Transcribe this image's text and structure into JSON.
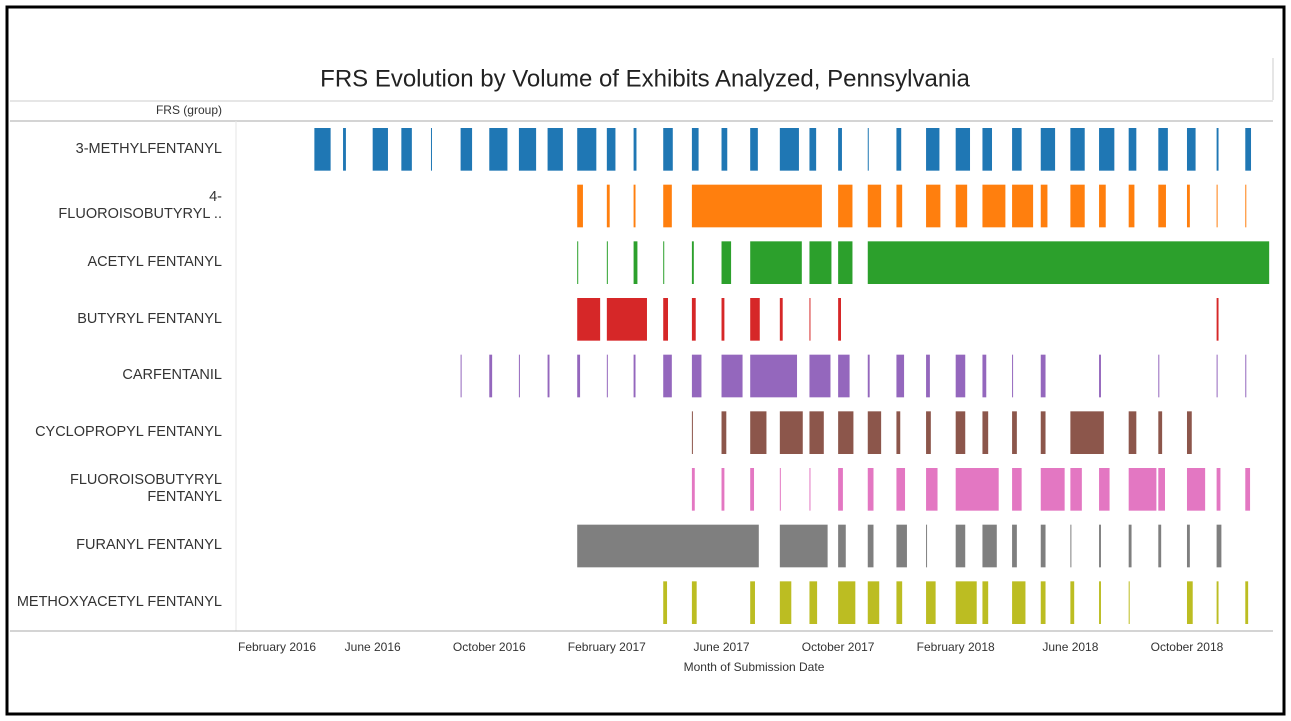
{
  "chart_data": {
    "type": "gantt",
    "title": "FRS Evolution by Volume of Exhibits Analyzed, Pennsylvania",
    "row_header": "FRS (group)",
    "x_label": "Month of Submission Date",
    "xlim": [
      "2016-01-10",
      "2018-12-30"
    ],
    "xticks": [
      {
        "value": "2016-02",
        "label": "February 2016"
      },
      {
        "value": "2016-06",
        "label": "June 2016"
      },
      {
        "value": "2016-10",
        "label": "October 2016"
      },
      {
        "value": "2017-02",
        "label": "February 2017"
      },
      {
        "value": "2017-06",
        "label": "June 2017"
      },
      {
        "value": "2017-10",
        "label": "October 2017"
      },
      {
        "value": "2018-02",
        "label": "February 2018"
      },
      {
        "value": "2018-06",
        "label": "June 2018"
      },
      {
        "value": "2018-10",
        "label": "October 2018"
      }
    ],
    "series": [
      {
        "name": "3-METHYLFENTANYL",
        "color": "#1f77b4",
        "x": [
          "2016-04",
          "2016-05",
          "2016-06",
          "2016-07",
          "2016-08",
          "2016-09",
          "2016-10",
          "2016-11",
          "2016-12",
          "2017-01",
          "2017-02",
          "2017-03",
          "2017-04",
          "2017-05",
          "2017-06",
          "2017-07",
          "2017-08",
          "2017-09",
          "2017-10",
          "2017-11",
          "2017-12",
          "2018-01",
          "2018-02",
          "2018-03",
          "2018-04",
          "2018-05",
          "2018-06",
          "2018-07",
          "2018-08",
          "2018-09",
          "2018-10",
          "2018-11",
          "2018-12"
        ],
        "values": [
          17,
          3,
          16,
          11,
          1,
          12,
          19,
          18,
          16,
          20,
          9,
          3,
          10,
          7,
          6,
          8,
          20,
          7,
          4,
          1,
          5,
          14,
          15,
          10,
          10,
          15,
          15,
          16,
          8,
          10,
          9,
          2,
          6
        ]
      },
      {
        "name": "4-\nFLUOROISOBUTYRYL ..",
        "color": "#ff7f0e",
        "x": [
          "2017-01",
          "2017-02",
          "2017-03",
          "2017-04",
          "2017-05",
          "2017-10",
          "2017-11",
          "2017-12",
          "2018-01",
          "2018-02",
          "2018-03",
          "2018-04",
          "2018-05",
          "2018-06",
          "2018-07",
          "2018-08",
          "2018-09",
          "2018-10",
          "2018-11",
          "2018-12"
        ],
        "values": [
          6,
          3,
          2,
          9,
          136,
          15,
          14,
          6,
          15,
          12,
          24,
          22,
          7,
          15,
          7,
          6,
          8,
          3,
          1,
          1
        ]
      },
      {
        "name": "ACETYL FENTANYL",
        "color": "#2ca02c",
        "x": [
          "2017-01",
          "2017-02",
          "2017-03",
          "2017-04",
          "2017-05",
          "2017-06",
          "2017-07",
          "2017-09",
          "2017-10",
          "2017-11"
        ],
        "values": [
          1,
          1,
          4,
          1,
          2,
          10,
          54,
          23,
          15,
          420
        ]
      },
      {
        "name": "BUTYRYL FENTANYL",
        "color": "#d62728",
        "x": [
          "2017-01",
          "2017-02",
          "2017-04",
          "2017-05",
          "2017-06",
          "2017-07",
          "2017-08",
          "2017-09",
          "2017-10",
          "2018-11"
        ],
        "values": [
          24,
          42,
          5,
          4,
          3,
          10,
          3,
          1,
          3,
          2
        ]
      },
      {
        "name": "CARFENTANIL",
        "color": "#9467bd",
        "x": [
          "2016-09",
          "2016-10",
          "2016-11",
          "2016-12",
          "2017-01",
          "2017-02",
          "2017-03",
          "2017-04",
          "2017-05",
          "2017-06",
          "2017-07",
          "2017-09",
          "2017-10",
          "2017-11",
          "2017-12",
          "2018-01",
          "2018-02",
          "2018-03",
          "2018-04",
          "2018-05",
          "2018-07",
          "2018-09",
          "2018-11",
          "2018-12"
        ],
        "values": [
          1,
          3,
          1,
          2,
          3,
          1,
          2,
          9,
          10,
          22,
          49,
          22,
          12,
          2,
          8,
          4,
          10,
          4,
          1,
          5,
          2,
          1,
          1,
          1
        ]
      },
      {
        "name": "CYCLOPROPYL FENTANYL",
        "color": "#8c564b",
        "x": [
          "2017-05",
          "2017-06",
          "2017-07",
          "2017-08",
          "2017-09",
          "2017-10",
          "2017-11",
          "2017-12",
          "2018-01",
          "2018-02",
          "2018-03",
          "2018-04",
          "2018-05",
          "2018-06",
          "2018-08",
          "2018-09",
          "2018-10"
        ],
        "values": [
          1,
          5,
          17,
          24,
          15,
          16,
          14,
          4,
          5,
          10,
          6,
          5,
          5,
          35,
          8,
          4,
          5
        ]
      },
      {
        "name": "FLUOROISOBUTYRYL FENTANYL",
        "color": "#e377c2",
        "x": [
          "2017-05",
          "2017-06",
          "2017-07",
          "2017-08",
          "2017-09",
          "2017-10",
          "2017-11",
          "2017-12",
          "2018-01",
          "2018-02",
          "2018-04",
          "2018-05",
          "2018-06",
          "2018-07",
          "2018-08",
          "2018-09",
          "2018-10",
          "2018-11",
          "2018-12"
        ],
        "values": [
          3,
          3,
          4,
          1,
          1,
          5,
          6,
          9,
          12,
          45,
          10,
          25,
          12,
          11,
          29,
          7,
          19,
          4,
          5
        ]
      },
      {
        "name": "FURANYL FENTANYL",
        "color": "#7f7f7f",
        "x": [
          "2017-01",
          "2017-08",
          "2017-10",
          "2017-11",
          "2017-12",
          "2018-01",
          "2018-02",
          "2018-03",
          "2018-04",
          "2018-05",
          "2018-06",
          "2018-07",
          "2018-08",
          "2018-09",
          "2018-10",
          "2018-11"
        ],
        "values": [
          190,
          50,
          8,
          6,
          11,
          1,
          10,
          15,
          5,
          5,
          1,
          2,
          3,
          3,
          3,
          5
        ]
      },
      {
        "name": "METHOXYACETYL FENTANYL",
        "color": "#bcbd22",
        "x": [
          "2017-04",
          "2017-05",
          "2017-07",
          "2017-08",
          "2017-09",
          "2017-10",
          "2017-11",
          "2017-12",
          "2018-01",
          "2018-02",
          "2018-03",
          "2018-04",
          "2018-05",
          "2018-06",
          "2018-07",
          "2018-08",
          "2018-10",
          "2018-11",
          "2018-12"
        ],
        "values": [
          4,
          5,
          5,
          12,
          8,
          18,
          12,
          6,
          10,
          22,
          6,
          14,
          5,
          4,
          2,
          1,
          6,
          2,
          3
        ]
      }
    ]
  }
}
